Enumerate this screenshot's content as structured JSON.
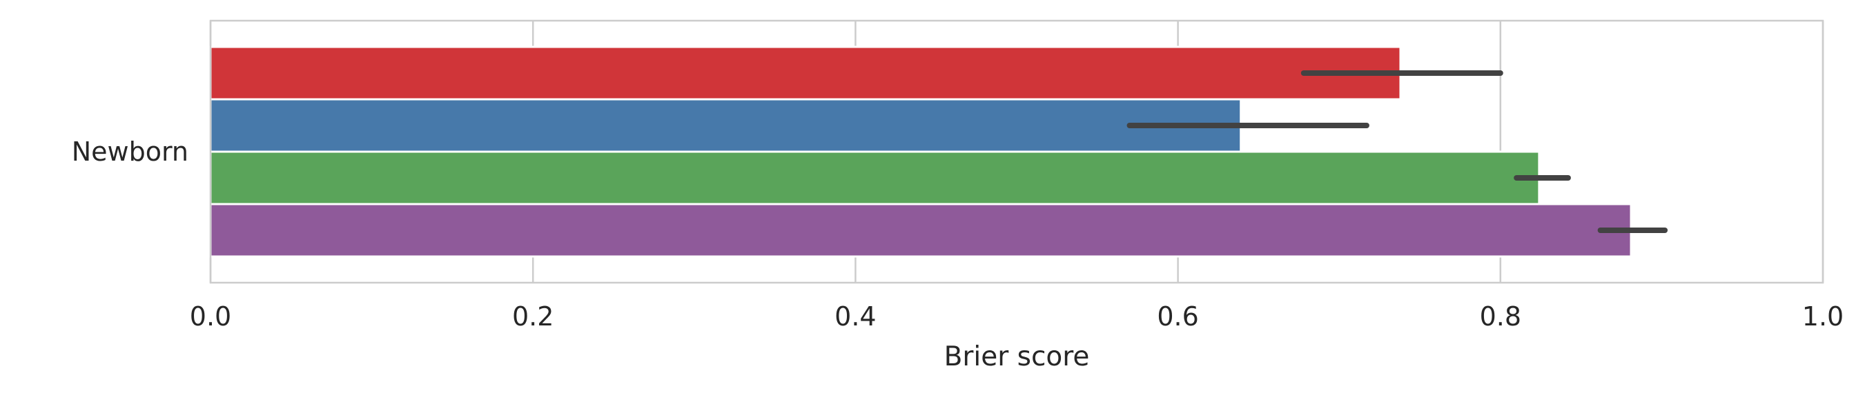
{
  "chart_data": {
    "type": "bar",
    "orientation": "horizontal",
    "categories": [
      "Newborn"
    ],
    "series": [
      {
        "color": "#d03539",
        "values": [
          0.738
        ],
        "ci": [
          [
            0.678,
            0.8
          ]
        ]
      },
      {
        "color": "#4779aa",
        "values": [
          0.639
        ],
        "ci": [
          [
            0.57,
            0.717
          ]
        ]
      },
      {
        "color": "#5aa45a",
        "values": [
          0.824
        ],
        "ci": [
          [
            0.81,
            0.842
          ]
        ]
      },
      {
        "color": "#8f5a9a",
        "values": [
          0.881
        ],
        "ci": [
          [
            0.862,
            0.902
          ]
        ]
      }
    ],
    "xlabel": "Brier score",
    "ylabel": "",
    "xlim": [
      0.0,
      1.0
    ],
    "xticks": [
      "0.0",
      "0.2",
      "0.4",
      "0.6",
      "0.8",
      "1.0"
    ],
    "grid": true,
    "legend": "none"
  }
}
